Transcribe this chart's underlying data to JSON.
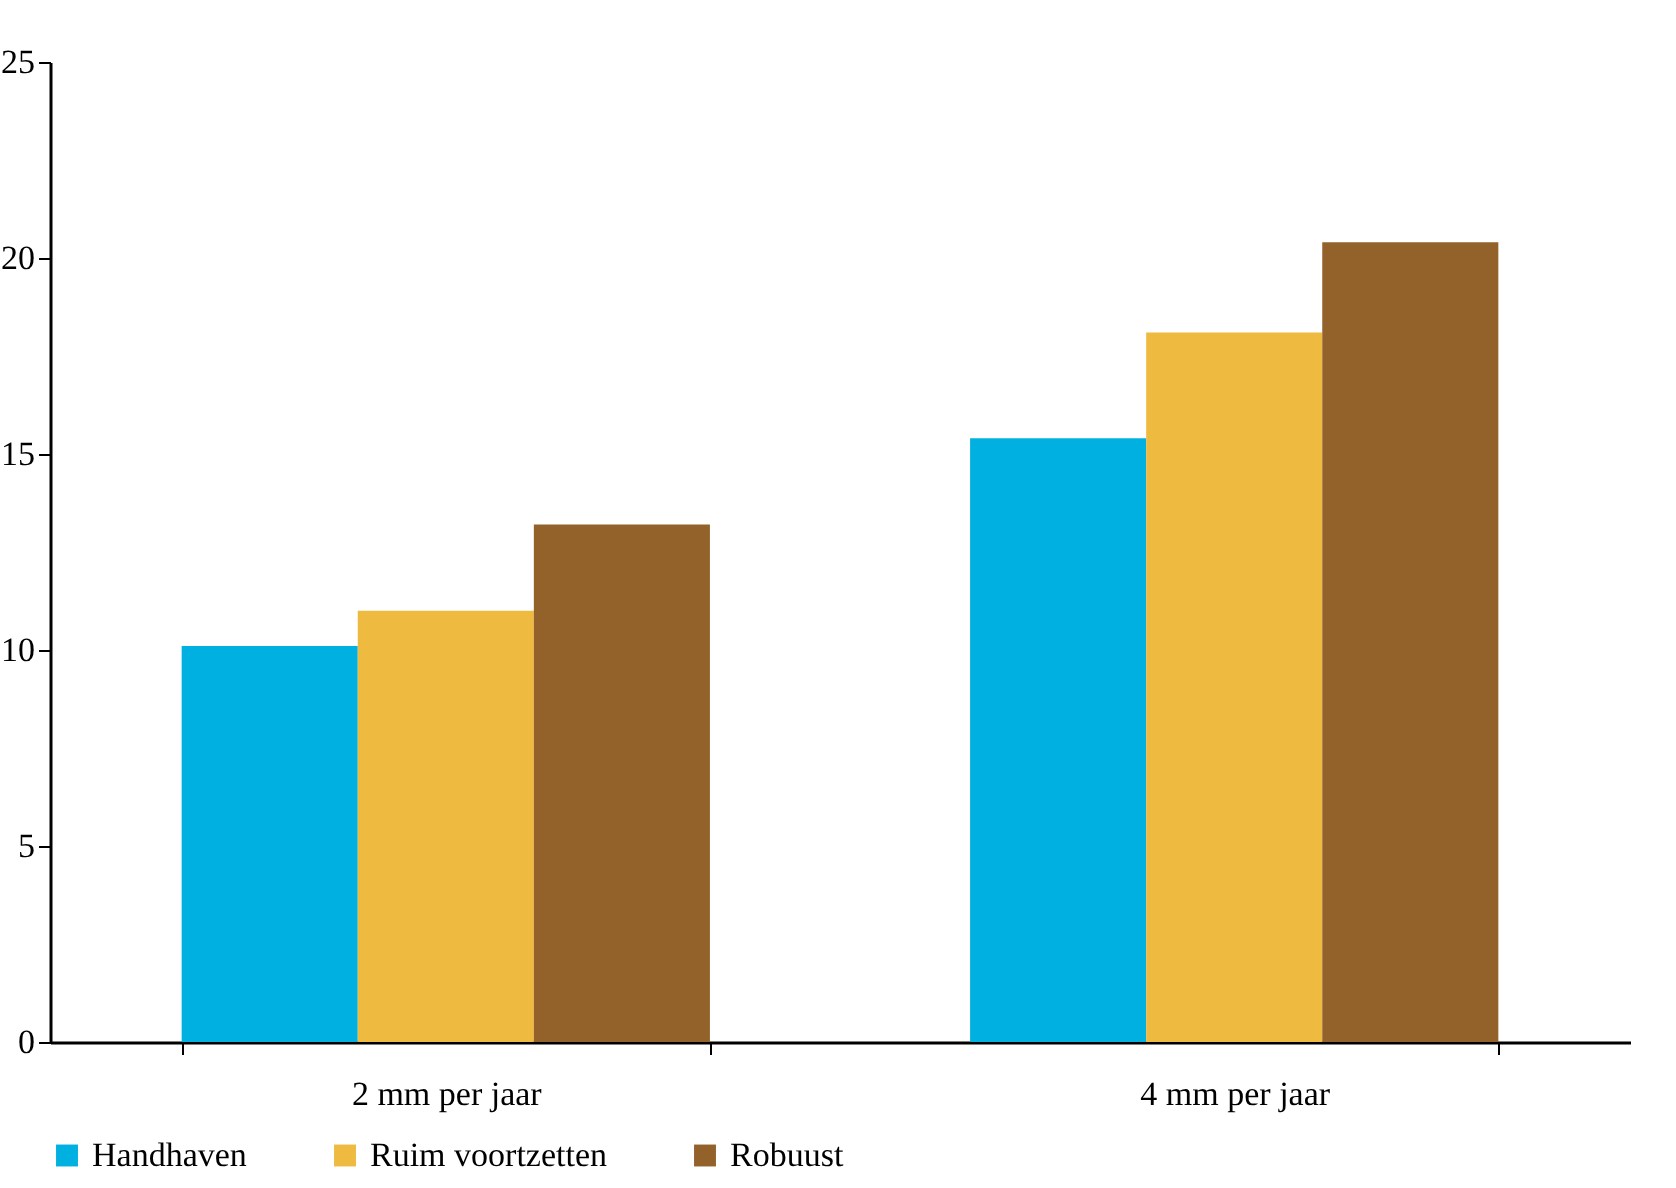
{
  "chart_data": {
    "type": "bar",
    "categories": [
      "2 mm per jaar",
      "4 mm per jaar"
    ],
    "series": [
      {
        "name": "Handhaven",
        "color": "#00b0e0",
        "values": [
          10.1,
          15.4
        ]
      },
      {
        "name": "Ruim voortzetten",
        "color": "#eeba40",
        "values": [
          11.0,
          18.1
        ]
      },
      {
        "name": "Robuust",
        "color": "#93622a",
        "values": [
          13.2,
          20.4
        ]
      }
    ],
    "ylim": [
      0,
      25
    ],
    "yticks": [
      0,
      5,
      10,
      15,
      20,
      25
    ],
    "grid": false,
    "legend": "bottom"
  }
}
